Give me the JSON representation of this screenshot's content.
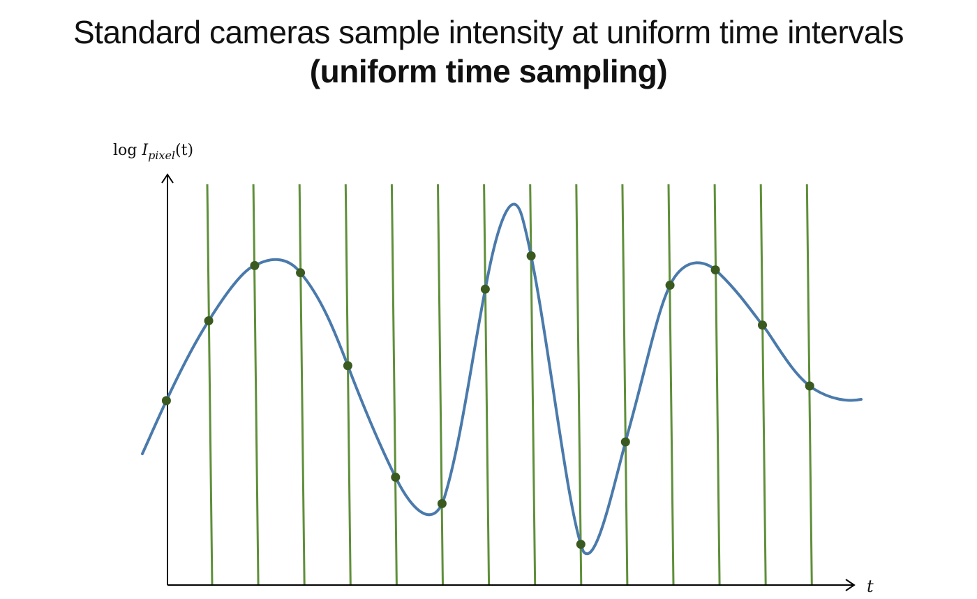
{
  "title": {
    "line1": "Standard cameras sample intensity at uniform time intervals",
    "line2": "(uniform time sampling)"
  },
  "axes": {
    "y_label_prefix": "log ",
    "y_label_var": "I",
    "y_label_sub": "pixel",
    "y_label_suffix": "(t)",
    "x_label": "t"
  },
  "colors": {
    "curve": "#4a7aab",
    "sample_lines": "#5f8f3a",
    "sample_points": "#3a5a20",
    "axis": "#000000"
  },
  "sampling": {
    "count": 15,
    "type": "uniform"
  }
}
